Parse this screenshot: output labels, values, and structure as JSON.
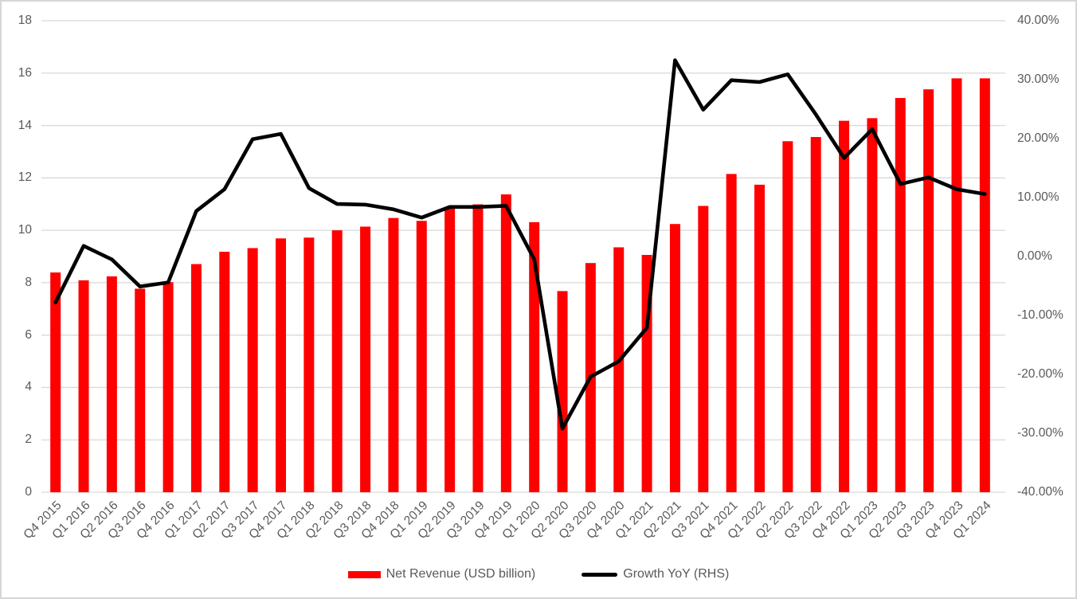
{
  "chart_data": {
    "type": "bar",
    "title": "",
    "xlabel": "",
    "ylabel": "",
    "categories": [
      "Q4 2015",
      "Q1 2016",
      "Q2 2016",
      "Q3 2016",
      "Q4 2016",
      "Q1 2017",
      "Q2 2017",
      "Q3 2017",
      "Q4 2017",
      "Q1 2018",
      "Q2 2018",
      "Q3 2018",
      "Q4 2018",
      "Q1 2019",
      "Q2 2019",
      "Q3 2019",
      "Q4 2019",
      "Q1 2020",
      "Q2 2020",
      "Q3 2020",
      "Q4 2020",
      "Q1 2021",
      "Q2 2021",
      "Q3 2021",
      "Q4 2021",
      "Q1 2022",
      "Q2 2022",
      "Q3 2022",
      "Q4 2022",
      "Q1 2023",
      "Q2 2023",
      "Q3 2023",
      "Q4 2023",
      "Q1 2024"
    ],
    "series": [
      {
        "name": "Net Revenue (USD billion)",
        "type": "bar",
        "axis": "left",
        "color": "#ff0000",
        "values": [
          8.39,
          8.09,
          8.24,
          7.77,
          8.02,
          8.71,
          9.18,
          9.32,
          9.69,
          9.72,
          10.0,
          10.14,
          10.47,
          10.36,
          10.84,
          10.99,
          11.37,
          10.31,
          7.68,
          8.75,
          9.35,
          9.06,
          10.24,
          10.93,
          12.15,
          11.74,
          13.4,
          13.56,
          14.18,
          14.28,
          15.05,
          15.38,
          15.8,
          15.8
        ]
      },
      {
        "name": "Growth YoY (RHS)",
        "type": "line",
        "axis": "right",
        "color": "#000000",
        "values": [
          -7.8,
          1.8,
          -0.5,
          -5.1,
          -4.4,
          7.7,
          11.4,
          19.9,
          20.8,
          11.6,
          8.9,
          8.8,
          8.0,
          6.6,
          8.4,
          8.4,
          8.6,
          -0.5,
          -29.2,
          -20.4,
          -17.8,
          -12.1,
          33.3,
          24.9,
          29.9,
          29.6,
          30.9,
          24.1,
          16.7,
          21.6,
          12.3,
          13.4,
          11.4,
          10.6
        ]
      }
    ],
    "left_axis": {
      "min": 0,
      "max": 18,
      "step": 2,
      "tick_labels": [
        "18",
        "16",
        "14",
        "12",
        "10",
        "8",
        "6",
        "4",
        "2",
        "0"
      ]
    },
    "right_axis": {
      "min": -40,
      "max": 40,
      "step": 10,
      "tick_labels": [
        "40.00%",
        "30.00%",
        "20.00%",
        "10.00%",
        "0.00%",
        "-10.00%",
        "-20.00%",
        "-30.00%",
        "-40.00%"
      ]
    },
    "grid": true,
    "legend_position": "bottom"
  },
  "colors": {
    "bar": "#ff0000",
    "line": "#000000",
    "gridline": "#d9d9d9",
    "axis_text": "#595959",
    "background": "#ffffff",
    "border": "#d6d6d6"
  },
  "legend": {
    "items": [
      {
        "label": "Net Revenue (USD billion)",
        "swatch": "bar-swatch-red"
      },
      {
        "label": "Growth YoY (RHS)",
        "swatch": "line-swatch-black"
      }
    ]
  }
}
